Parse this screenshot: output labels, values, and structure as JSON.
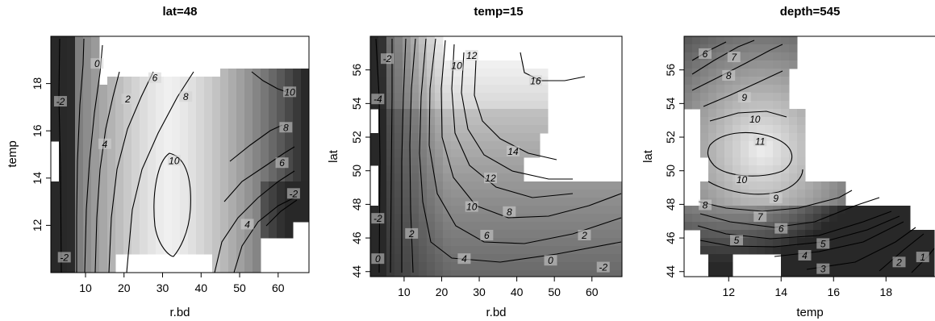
{
  "chart_data": [
    {
      "type": "heatmap",
      "title": "lat=48",
      "xlabel": "r.bd",
      "ylabel": "temp",
      "xlim": [
        1,
        68
      ],
      "ylim": [
        10,
        20
      ],
      "xticks": [
        10,
        20,
        30,
        40,
        50,
        60
      ],
      "yticks": [
        12,
        14,
        16,
        18
      ],
      "contour_labels": [
        {
          "x": 13,
          "y": 18.8,
          "value": "0"
        },
        {
          "x": 3.5,
          "y": 17.2,
          "value": "-2"
        },
        {
          "x": 21,
          "y": 17.3,
          "value": "2"
        },
        {
          "x": 28,
          "y": 18.2,
          "value": "6"
        },
        {
          "x": 15,
          "y": 15.4,
          "value": "4"
        },
        {
          "x": 36,
          "y": 17.4,
          "value": "8"
        },
        {
          "x": 33,
          "y": 14.7,
          "value": "10"
        },
        {
          "x": 63,
          "y": 17.6,
          "value": "10"
        },
        {
          "x": 62,
          "y": 16.1,
          "value": "8"
        },
        {
          "x": 61,
          "y": 14.6,
          "value": "6"
        },
        {
          "x": 52,
          "y": 12.0,
          "value": "4"
        },
        {
          "x": 64,
          "y": 13.3,
          "value": "-2"
        },
        {
          "x": 4.5,
          "y": 10.6,
          "value": "-2"
        }
      ]
    },
    {
      "type": "heatmap",
      "title": "temp=15",
      "xlabel": "r.bd",
      "ylabel": "lat",
      "xlim": [
        1,
        68
      ],
      "ylim": [
        43.7,
        58
      ],
      "xticks": [
        10,
        20,
        30,
        40,
        50,
        60
      ],
      "yticks": [
        44,
        46,
        48,
        50,
        52,
        54,
        56
      ],
      "contour_labels": [
        {
          "x": 5.5,
          "y": 56.6,
          "value": "-2"
        },
        {
          "x": 3,
          "y": 54.2,
          "value": "-4"
        },
        {
          "x": 24,
          "y": 56.2,
          "value": "10"
        },
        {
          "x": 28,
          "y": 56.8,
          "value": "12"
        },
        {
          "x": 45,
          "y": 55.3,
          "value": "16"
        },
        {
          "x": 39,
          "y": 51.1,
          "value": "14"
        },
        {
          "x": 33,
          "y": 49.5,
          "value": "12"
        },
        {
          "x": 28,
          "y": 47.8,
          "value": "10"
        },
        {
          "x": 38,
          "y": 47.5,
          "value": "8"
        },
        {
          "x": 32,
          "y": 46.1,
          "value": "6"
        },
        {
          "x": 26,
          "y": 44.7,
          "value": "4"
        },
        {
          "x": 58,
          "y": 46.1,
          "value": "2"
        },
        {
          "x": 49,
          "y": 44.6,
          "value": "0"
        },
        {
          "x": 63,
          "y": 44.2,
          "value": "-2"
        },
        {
          "x": 12,
          "y": 46.2,
          "value": "2"
        },
        {
          "x": 3,
          "y": 44.7,
          "value": "0"
        },
        {
          "x": 3,
          "y": 47.1,
          "value": "-2"
        }
      ]
    },
    {
      "type": "heatmap",
      "title": "depth=545",
      "xlabel": "temp",
      "ylabel": "lat",
      "xlim": [
        10.3,
        19.9
      ],
      "ylim": [
        43.7,
        58
      ],
      "xticks": [
        12,
        14,
        16,
        18
      ],
      "yticks": [
        44,
        46,
        48,
        50,
        52,
        54,
        56
      ],
      "contour_labels": [
        {
          "x": 11.1,
          "y": 56.9,
          "value": "6"
        },
        {
          "x": 12.2,
          "y": 56.7,
          "value": "7"
        },
        {
          "x": 12.0,
          "y": 55.6,
          "value": "8"
        },
        {
          "x": 12.6,
          "y": 54.3,
          "value": "9"
        },
        {
          "x": 13.0,
          "y": 53.0,
          "value": "10"
        },
        {
          "x": 13.2,
          "y": 51.7,
          "value": "11"
        },
        {
          "x": 12.5,
          "y": 49.4,
          "value": "10"
        },
        {
          "x": 13.8,
          "y": 48.3,
          "value": "9"
        },
        {
          "x": 11.1,
          "y": 47.9,
          "value": "8"
        },
        {
          "x": 13.2,
          "y": 47.2,
          "value": "7"
        },
        {
          "x": 14.0,
          "y": 46.5,
          "value": "6"
        },
        {
          "x": 12.3,
          "y": 45.8,
          "value": "5"
        },
        {
          "x": 15.6,
          "y": 45.6,
          "value": "5"
        },
        {
          "x": 14.9,
          "y": 44.9,
          "value": "4"
        },
        {
          "x": 15.6,
          "y": 44.1,
          "value": "3"
        },
        {
          "x": 18.5,
          "y": 44.5,
          "value": "2"
        },
        {
          "x": 19.4,
          "y": 44.8,
          "value": "1"
        }
      ]
    }
  ]
}
